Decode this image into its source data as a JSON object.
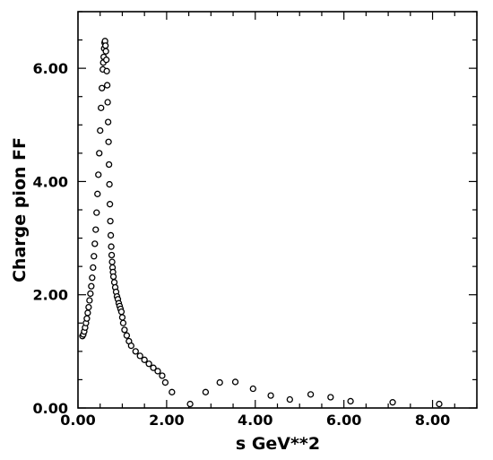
{
  "chart_data": {
    "type": "scatter",
    "xlabel": "s  GeV**2",
    "ylabel": "Charge  pion  FF",
    "xlim": [
      0,
      9
    ],
    "ylim": [
      0,
      7
    ],
    "xticks": [
      0,
      2,
      4,
      6,
      8
    ],
    "xtick_labels": [
      "0.00",
      "2.00",
      "4.00",
      "6.00",
      "8.00"
    ],
    "yticks": [
      0,
      2,
      4,
      6
    ],
    "ytick_labels": [
      "0.00",
      "2.00",
      "4.00",
      "6.00"
    ],
    "minor_tick_step": 0.5,
    "grid": false,
    "legend": "none",
    "series": [
      {
        "marker": "circle",
        "color": "#000000",
        "x": [
          0.1,
          0.12,
          0.14,
          0.16,
          0.18,
          0.2,
          0.22,
          0.24,
          0.26,
          0.28,
          0.3,
          0.32,
          0.34,
          0.36,
          0.38,
          0.4,
          0.42,
          0.44,
          0.46,
          0.48,
          0.5,
          0.52,
          0.54,
          0.56,
          0.57,
          0.58,
          0.59,
          0.6,
          0.61,
          0.62,
          0.63,
          0.64,
          0.65,
          0.66,
          0.67,
          0.68,
          0.69,
          0.7,
          0.71,
          0.72,
          0.73,
          0.74,
          0.75,
          0.76,
          0.77,
          0.78,
          0.79,
          0.8,
          0.82,
          0.84,
          0.86,
          0.88,
          0.9,
          0.92,
          0.94,
          0.96,
          0.98,
          1.0,
          1.02,
          1.05,
          1.1,
          1.15,
          1.2,
          1.3,
          1.4,
          1.5,
          1.6,
          1.7,
          1.8,
          1.9,
          1.97,
          2.12,
          2.53,
          2.88,
          3.2,
          3.55,
          3.95,
          4.35,
          4.78,
          5.25,
          5.7,
          6.15,
          7.1,
          8.15
        ],
        "y": [
          1.27,
          1.3,
          1.35,
          1.42,
          1.5,
          1.58,
          1.68,
          1.78,
          1.9,
          2.02,
          2.15,
          2.3,
          2.48,
          2.68,
          2.9,
          3.15,
          3.45,
          3.78,
          4.12,
          4.5,
          4.9,
          5.3,
          5.65,
          5.98,
          6.1,
          6.2,
          6.35,
          6.45,
          6.48,
          6.4,
          6.3,
          6.15,
          5.95,
          5.7,
          5.4,
          5.05,
          4.7,
          4.3,
          3.95,
          3.6,
          3.3,
          3.05,
          2.85,
          2.7,
          2.58,
          2.48,
          2.4,
          2.32,
          2.22,
          2.13,
          2.05,
          1.97,
          1.92,
          1.85,
          1.8,
          1.75,
          1.7,
          1.6,
          1.5,
          1.38,
          1.28,
          1.18,
          1.1,
          1.0,
          0.92,
          0.85,
          0.78,
          0.71,
          0.65,
          0.57,
          0.45,
          0.28,
          0.07,
          0.28,
          0.45,
          0.46,
          0.34,
          0.22,
          0.15,
          0.24,
          0.19,
          0.12,
          0.1,
          0.07
        ]
      }
    ]
  }
}
